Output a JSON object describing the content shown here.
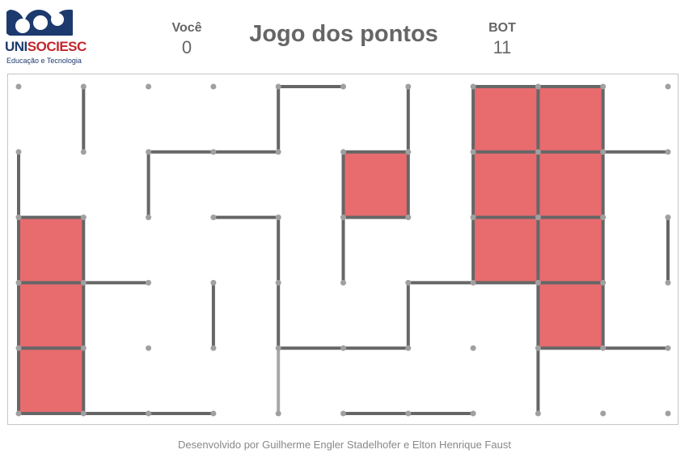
{
  "header": {
    "logo_text": "UNISOCIESC",
    "logo_subtitle": "Educação e Tecnologia",
    "title": "Jogo dos pontos",
    "player": {
      "label": "Você",
      "score": "0"
    },
    "bot": {
      "label": "BOT",
      "score": "11"
    }
  },
  "board": {
    "cols": 11,
    "rows": 6,
    "colors": {
      "dot": "#a0a0a0",
      "line": "#666666",
      "last_line": "#a8a8a8",
      "box_bot": "#e86b6e"
    },
    "boxes": [
      {
        "col": 0,
        "row": 2,
        "owner": "bot"
      },
      {
        "col": 0,
        "row": 3,
        "owner": "bot"
      },
      {
        "col": 0,
        "row": 4,
        "owner": "bot"
      },
      {
        "col": 5,
        "row": 1,
        "owner": "bot"
      },
      {
        "col": 7,
        "row": 0,
        "owner": "bot"
      },
      {
        "col": 8,
        "row": 0,
        "owner": "bot"
      },
      {
        "col": 7,
        "row": 1,
        "owner": "bot"
      },
      {
        "col": 8,
        "row": 1,
        "owner": "bot"
      },
      {
        "col": 7,
        "row": 2,
        "owner": "bot"
      },
      {
        "col": 8,
        "row": 2,
        "owner": "bot"
      },
      {
        "col": 8,
        "row": 3,
        "owner": "bot"
      }
    ],
    "h_lines": [
      [
        4,
        0
      ],
      [
        7,
        0
      ],
      [
        8,
        0
      ],
      [
        2,
        1
      ],
      [
        3,
        1
      ],
      [
        5,
        1
      ],
      [
        7,
        1
      ],
      [
        8,
        1
      ],
      [
        9,
        1
      ],
      [
        0,
        2
      ],
      [
        3,
        2
      ],
      [
        5,
        2
      ],
      [
        7,
        2
      ],
      [
        8,
        2
      ],
      [
        0,
        3
      ],
      [
        1,
        3
      ],
      [
        6,
        3
      ],
      [
        7,
        3
      ],
      [
        8,
        3
      ],
      [
        0,
        4
      ],
      [
        4,
        4
      ],
      [
        5,
        4
      ],
      [
        8,
        4
      ],
      [
        9,
        4
      ],
      [
        0,
        5
      ],
      [
        1,
        5
      ],
      [
        2,
        5
      ],
      [
        5,
        5
      ],
      [
        6,
        5
      ]
    ],
    "v_lines": [
      [
        1,
        0
      ],
      [
        4,
        0
      ],
      [
        6,
        0
      ],
      [
        7,
        0
      ],
      [
        8,
        0
      ],
      [
        9,
        0
      ],
      [
        0,
        1
      ],
      [
        2,
        1
      ],
      [
        5,
        1
      ],
      [
        6,
        1
      ],
      [
        7,
        1
      ],
      [
        8,
        1
      ],
      [
        9,
        1
      ],
      [
        0,
        2
      ],
      [
        1,
        2
      ],
      [
        4,
        2
      ],
      [
        5,
        2
      ],
      [
        7,
        2
      ],
      [
        8,
        2
      ],
      [
        9,
        2
      ],
      [
        10,
        2
      ],
      [
        0,
        3
      ],
      [
        1,
        3
      ],
      [
        3,
        3
      ],
      [
        4,
        3
      ],
      [
        6,
        3
      ],
      [
        8,
        3
      ],
      [
        9,
        3
      ],
      [
        0,
        4
      ],
      [
        1,
        4
      ],
      [
        8,
        4
      ]
    ],
    "last_v_lines": [
      [
        4,
        4
      ]
    ]
  },
  "footer": {
    "credits": "Desenvolvido por Guilherme Engler Stadelhofer e Elton Henrique Faust"
  }
}
